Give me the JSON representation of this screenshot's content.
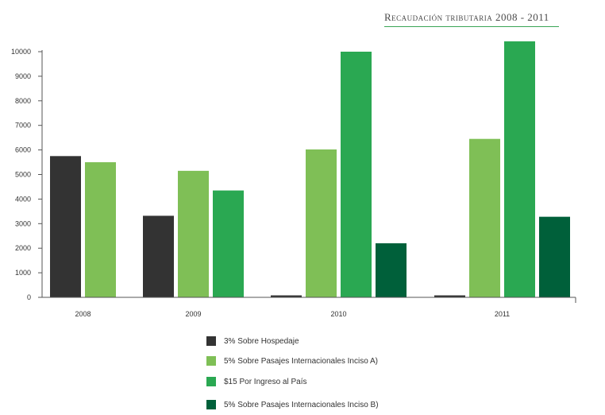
{
  "chart_data": {
    "type": "bar",
    "title": "Recaudación tributaria 2008 - 2011",
    "categories": [
      "2008",
      "2009",
      "2010",
      "2011"
    ],
    "ylim": [
      0,
      10000
    ],
    "yticks": [
      0,
      1000,
      2000,
      3000,
      4000,
      5000,
      6000,
      7000,
      8000,
      9000,
      10000
    ],
    "grid": false,
    "legend_position": "bottom",
    "series": [
      {
        "name": "3% Sobre Hospedaje",
        "color": "#333333",
        "values": [
          5750,
          3320,
          80,
          80
        ]
      },
      {
        "name": "5% Sobre Pasajes Internacionales Inciso A)",
        "color": "#7fbf56",
        "values": [
          5500,
          5150,
          6020,
          6450
        ]
      },
      {
        "name": "$15 Por Ingreso al País",
        "color": "#2aa852",
        "values": [
          null,
          4350,
          10000,
          10420
        ]
      },
      {
        "name": "5% Sobre Pasajes Internacionales Inciso B)",
        "color": "#00603a",
        "values": [
          null,
          null,
          2200,
          3280
        ]
      }
    ]
  }
}
